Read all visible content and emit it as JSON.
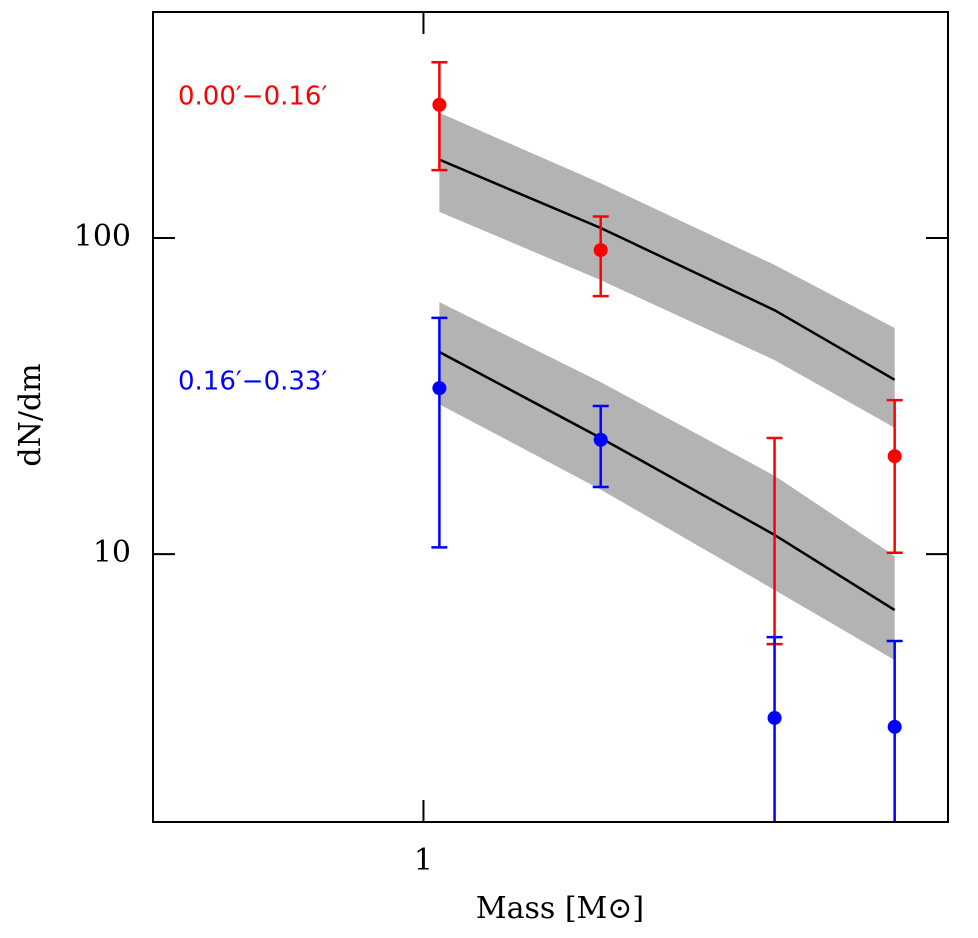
{
  "chart_data": {
    "type": "line",
    "x_label": "Mass [M⊙]",
    "y_label": "dN/dm",
    "xlog": true,
    "ylog": true,
    "xlim": [
      0.605,
      2.65
    ],
    "ylim": [
      1.42,
      519
    ],
    "xticks": [
      1
    ],
    "yticks": [
      10,
      100
    ],
    "series": [
      {
        "name": "0.00′−0.16′",
        "color": "#ff0000",
        "x": [
          1.03,
          1.39,
          1.92,
          2.4
        ],
        "values": [
          264,
          91.6,
          null,
          20.4
        ],
        "lower": [
          164,
          65.5,
          5.19,
          10.1
        ],
        "upper": [
          360,
          117,
          23.3,
          30.7
        ]
      },
      {
        "name": "0.16′−0.33′",
        "color": "#0000ff",
        "x": [
          1.03,
          1.39,
          1.92,
          2.4
        ],
        "values": [
          33.5,
          23,
          3.03,
          2.84
        ],
        "lower": [
          10.5,
          16.3,
          1,
          1
        ],
        "upper": [
          55.9,
          29.4,
          5.46,
          5.31
        ]
      }
    ],
    "models": [
      {
        "color": "#000000",
        "band_color": "#b3b3b3",
        "x": [
          1.03,
          1.39,
          1.92,
          2.4
        ],
        "values": [
          177,
          107.6,
          59.1,
          35.6
        ],
        "band_lower": [
          121,
          73.6,
          41.1,
          25.1
        ],
        "band_upper": [
          249,
          149,
          82.2,
          51.9
        ]
      },
      {
        "color": "#000000",
        "band_color": "#b3b3b3",
        "x": [
          1.03,
          1.39,
          1.92,
          2.4
        ],
        "values": [
          43.6,
          23.3,
          11.5,
          6.65
        ],
        "band_lower": [
          29.8,
          16,
          7.7,
          4.62
        ],
        "band_upper": [
          62.7,
          35,
          17.7,
          9.86
        ]
      }
    ]
  }
}
